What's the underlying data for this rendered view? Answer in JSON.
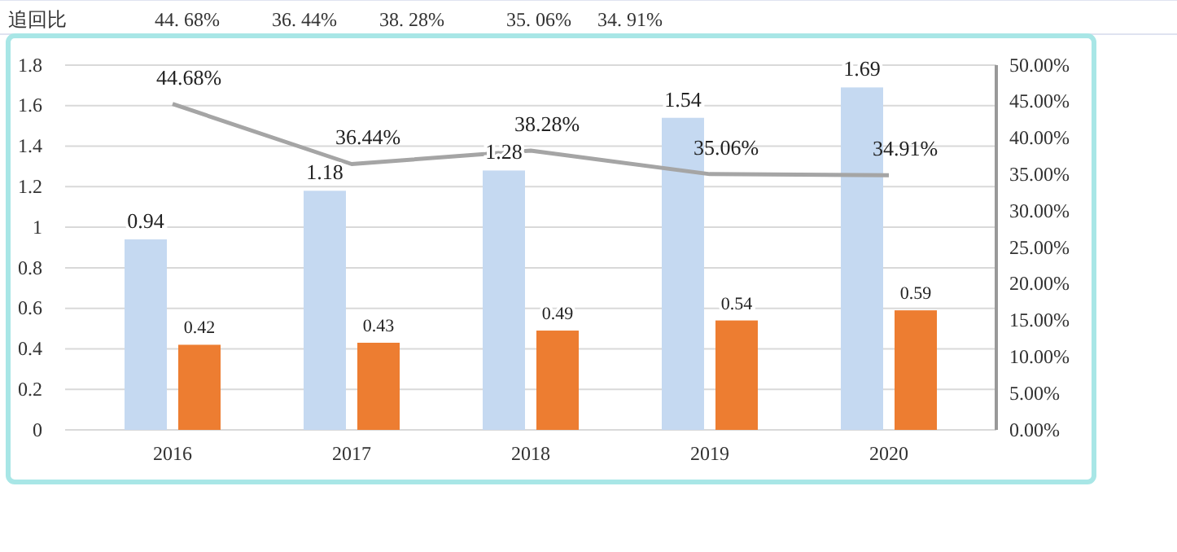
{
  "chart_data": {
    "type": "bar",
    "categories": [
      "2016",
      "2017",
      "2018",
      "2019",
      "2020"
    ],
    "series": [
      {
        "color": "#c5d9f1",
        "values": [
          0.94,
          1.18,
          1.28,
          1.54,
          1.69
        ]
      },
      {
        "color": "#ed7d31",
        "values": [
          0.42,
          0.43,
          0.49,
          0.54,
          0.59
        ]
      },
      {
        "type": "line",
        "axis": "y2",
        "color": "#a5a5a5",
        "values": [
          44.68,
          36.44,
          38.28,
          35.06,
          34.91
        ],
        "value_labels": [
          "44.68%",
          "36.44%",
          "38.28%",
          "35.06%",
          "34.91%"
        ]
      }
    ],
    "data_labels": true,
    "ylim": [
      0,
      1.8
    ],
    "yticks": [
      0,
      0.2,
      0.4,
      0.6,
      0.8,
      1,
      1.2,
      1.4,
      1.6,
      1.8
    ],
    "y2lim": [
      0,
      50
    ],
    "y2ticks": [
      {
        "value": 0,
        "label": "0.00%"
      },
      {
        "value": 5,
        "label": "5.00%"
      },
      {
        "value": 10,
        "label": "10.00%"
      },
      {
        "value": 15,
        "label": "15.00%"
      },
      {
        "value": 20,
        "label": "20.00%"
      },
      {
        "value": 25,
        "label": "25.00%"
      },
      {
        "value": 30,
        "label": "30.00%"
      },
      {
        "value": 35,
        "label": "35.00%"
      },
      {
        "value": 40,
        "label": "40.00%"
      },
      {
        "value": 45,
        "label": "45.00%"
      },
      {
        "value": 50,
        "label": "50.00%"
      }
    ],
    "grid": "y",
    "marker": "none",
    "line_style": "solid",
    "annotations": [
      "追回比",
      "44. 68%",
      "36. 44%",
      "38. 28%",
      "35. 06%",
      "34. 91%"
    ]
  }
}
